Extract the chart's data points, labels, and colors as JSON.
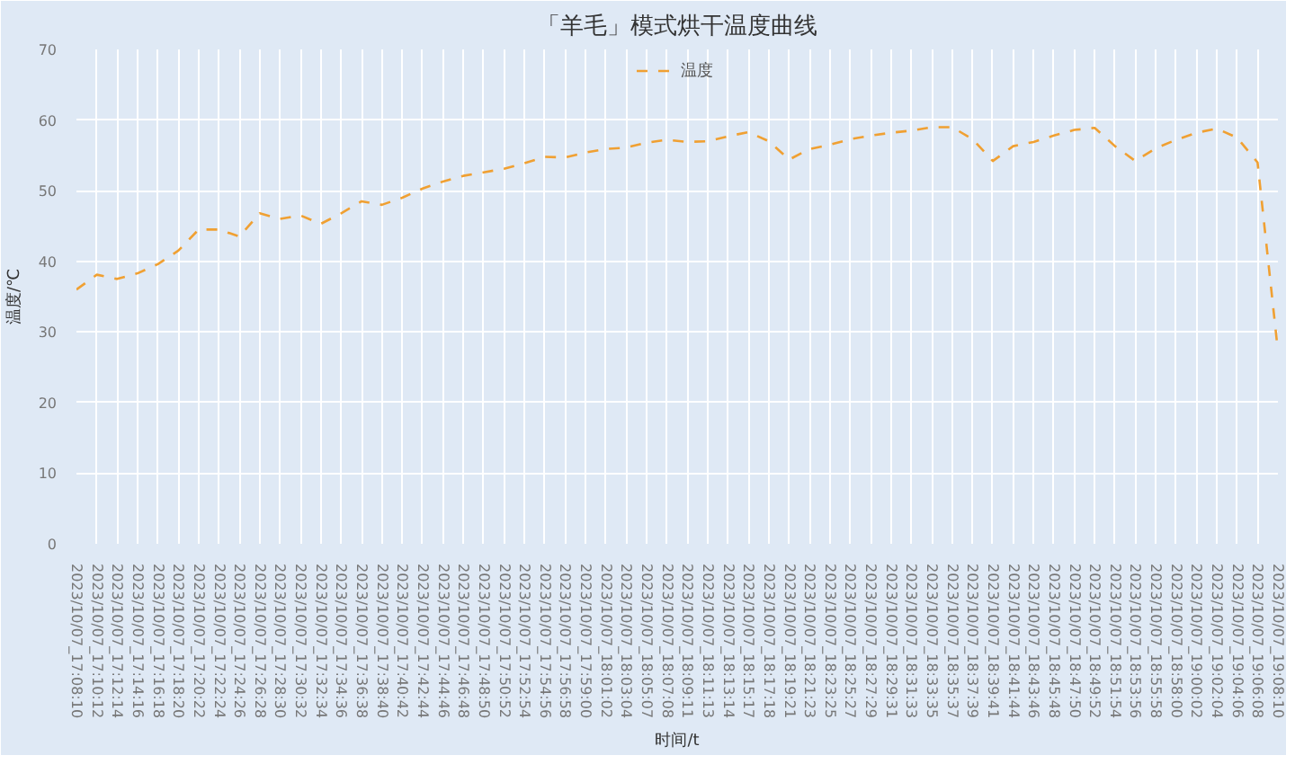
{
  "chart_data": {
    "type": "line",
    "title": "「羊毛」模式烘干温度曲线",
    "xlabel": "时间/t",
    "ylabel": "温度/℃",
    "categories": [
      "2023/10/07_17:08:10",
      "2023/10/07_17:10:12",
      "2023/10/07_17:12:14",
      "2023/10/07_17:14:16",
      "2023/10/07_17:16:18",
      "2023/10/07_17:18:20",
      "2023/10/07_17:20:22",
      "2023/10/07_17:22:24",
      "2023/10/07_17:24:26",
      "2023/10/07_17:26:28",
      "2023/10/07_17:28:30",
      "2023/10/07_17:30:32",
      "2023/10/07_17:32:34",
      "2023/10/07_17:34:36",
      "2023/10/07_17:36:38",
      "2023/10/07_17:38:40",
      "2023/10/07_17:40:42",
      "2023/10/07_17:42:44",
      "2023/10/07_17:44:46",
      "2023/10/07_17:46:48",
      "2023/10/07_17:48:50",
      "2023/10/07_17:50:52",
      "2023/10/07_17:52:54",
      "2023/10/07_17:54:56",
      "2023/10/07_17:56:58",
      "2023/10/07_17:59:00",
      "2023/10/07_18:01:02",
      "2023/10/07_18:03:04",
      "2023/10/07_18:05:07",
      "2023/10/07_18:07:08",
      "2023/10/07_18:09:11",
      "2023/10/07_18:11:13",
      "2023/10/07_18:13:14",
      "2023/10/07_18:15:17",
      "2023/10/07_18:17:18",
      "2023/10/07_18:19:21",
      "2023/10/07_18:21:23",
      "2023/10/07_18:23:25",
      "2023/10/07_18:25:27",
      "2023/10/07_18:27:29",
      "2023/10/07_18:29:31",
      "2023/10/07_18:31:33",
      "2023/10/07_18:33:35",
      "2023/10/07_18:35:37",
      "2023/10/07_18:37:39",
      "2023/10/07_18:39:41",
      "2023/10/07_18:41:44",
      "2023/10/07_18:43:46",
      "2023/10/07_18:45:48",
      "2023/10/07_18:47:50",
      "2023/10/07_18:49:52",
      "2023/10/07_18:51:54",
      "2023/10/07_18:53:56",
      "2023/10/07_18:55:58",
      "2023/10/07_18:58:00",
      "2023/10/07_19:00:02",
      "2023/10/07_19:02:04",
      "2023/10/07_19:04:06",
      "2023/10/07_19:06:08",
      "2023/10/07_19:08:10"
    ],
    "series": [
      {
        "name": "温度",
        "color": "#f0a032",
        "values": [
          36.0,
          38.1,
          37.5,
          38.3,
          39.6,
          41.5,
          44.5,
          44.5,
          43.5,
          46.8,
          46.0,
          46.5,
          45.3,
          46.8,
          48.5,
          48.0,
          49.0,
          50.3,
          51.3,
          52.1,
          52.6,
          53.1,
          53.9,
          54.8,
          54.7,
          55.4,
          55.9,
          56.1,
          56.8,
          57.2,
          56.9,
          57.0,
          57.7,
          58.3,
          57.0,
          54.4,
          55.9,
          56.5,
          57.3,
          57.8,
          58.2,
          58.5,
          59.0,
          59.0,
          57.3,
          54.2,
          56.3,
          56.9,
          57.8,
          58.6,
          58.9,
          56.3,
          54.2,
          56.0,
          57.2,
          58.2,
          58.8,
          57.5,
          54.0,
          27.3
        ]
      }
    ],
    "ylim": [
      0,
      70
    ],
    "yticks": [
      0,
      10,
      20,
      30,
      40,
      50,
      60,
      70
    ],
    "grid": true,
    "legend": "top",
    "line_style": "dashed"
  }
}
